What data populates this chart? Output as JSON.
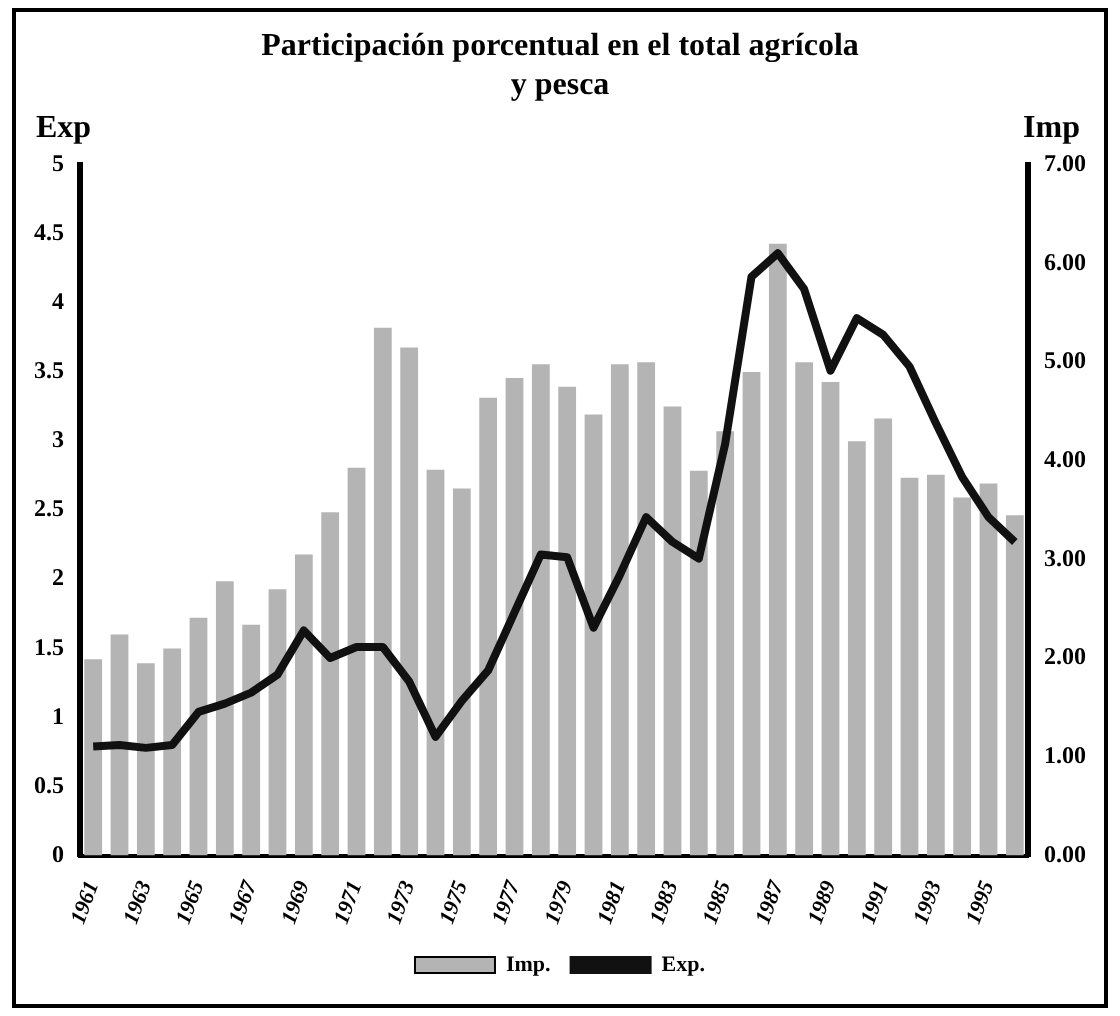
{
  "chart_data": {
    "type": "bar",
    "title": "Participación porcentual en el total agrícola y pesca",
    "ylabel": "Exp",
    "y2label": "Imp",
    "categories": [
      "1961",
      null,
      "1963",
      null,
      "1965",
      null,
      "1967",
      null,
      "1969",
      null,
      "1971",
      null,
      "1973",
      null,
      "1975",
      null,
      "1977",
      null,
      "1979",
      null,
      "1981",
      null,
      "1983",
      null,
      "1985",
      null,
      "1987",
      null,
      "1989",
      null,
      "1991",
      null,
      "1993",
      null,
      "1995",
      null
    ],
    "series": [
      {
        "name": "Imp.",
        "axis": "y2",
        "color": "#b4b4b4",
        "values": [
          1.99,
          2.24,
          1.95,
          2.1,
          2.41,
          2.78,
          2.34,
          2.7,
          3.05,
          3.48,
          3.93,
          5.35,
          5.15,
          3.91,
          3.72,
          4.64,
          4.84,
          4.98,
          4.75,
          4.47,
          4.98,
          5.0,
          4.55,
          3.9,
          4.3,
          4.9,
          6.2,
          5.0,
          4.8,
          4.2,
          4.43,
          3.83,
          3.86,
          3.63,
          3.77,
          3.45
        ]
      },
      {
        "name": "Exp.",
        "type": "line",
        "axis": "y",
        "color": "#111111",
        "values": [
          0.79,
          0.8,
          0.78,
          0.8,
          1.04,
          1.1,
          1.18,
          1.31,
          1.63,
          1.43,
          1.51,
          1.51,
          1.26,
          0.86,
          1.12,
          1.34,
          1.76,
          2.18,
          2.16,
          1.65,
          2.03,
          2.45,
          2.27,
          2.15,
          2.98,
          4.19,
          4.36,
          4.1,
          3.51,
          3.89,
          3.77,
          3.54,
          3.13,
          2.74,
          2.45,
          2.27
        ]
      }
    ],
    "ylim": [
      0,
      5
    ],
    "yticks": [
      0,
      0.5,
      1,
      1.5,
      2,
      2.5,
      3,
      3.5,
      4,
      4.5,
      5
    ],
    "y2lim": [
      0,
      7
    ],
    "y2ticks": [
      {
        "value": 0,
        "label": "0.00"
      },
      {
        "value": 1,
        "label": "1.00"
      },
      {
        "value": 2,
        "label": "2.00"
      },
      {
        "value": 3,
        "label": "3.00"
      },
      {
        "value": 4,
        "label": "4.00"
      },
      {
        "value": 5,
        "label": "5.00"
      },
      {
        "value": 6,
        "label": "6.00"
      },
      {
        "value": 7,
        "label": "7.00"
      }
    ],
    "grid": false,
    "legend": "bottom",
    "marker": "none",
    "line_style": "solid"
  }
}
